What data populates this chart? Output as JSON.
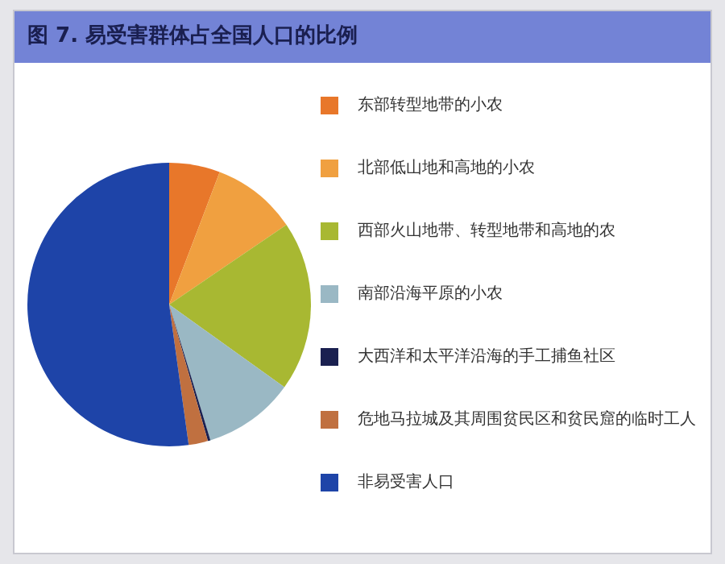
{
  "chart_data": {
    "type": "pie",
    "title": "图 7. 易受害群体占全国人口的比例",
    "categories": [
      "东部转型地带的小农",
      "北部低山地和高地的小农",
      "西部火山地带、转型地带和高地的农",
      "南部沿海平原的小农",
      "大西洋和太平洋沿海的手工捕鱼社区",
      "危地马拉城及其周围贫民区和贫民窟的临时工人",
      "非易受害人口"
    ],
    "values": [
      5.8,
      9.7,
      19.4,
      10.4,
      0.3,
      2.2,
      52.2
    ],
    "colors": [
      "#e8772a",
      "#f0a040",
      "#a8b832",
      "#9ab8c4",
      "#1a2050",
      "#c07040",
      "#1e44a8"
    ],
    "legend": "right"
  }
}
